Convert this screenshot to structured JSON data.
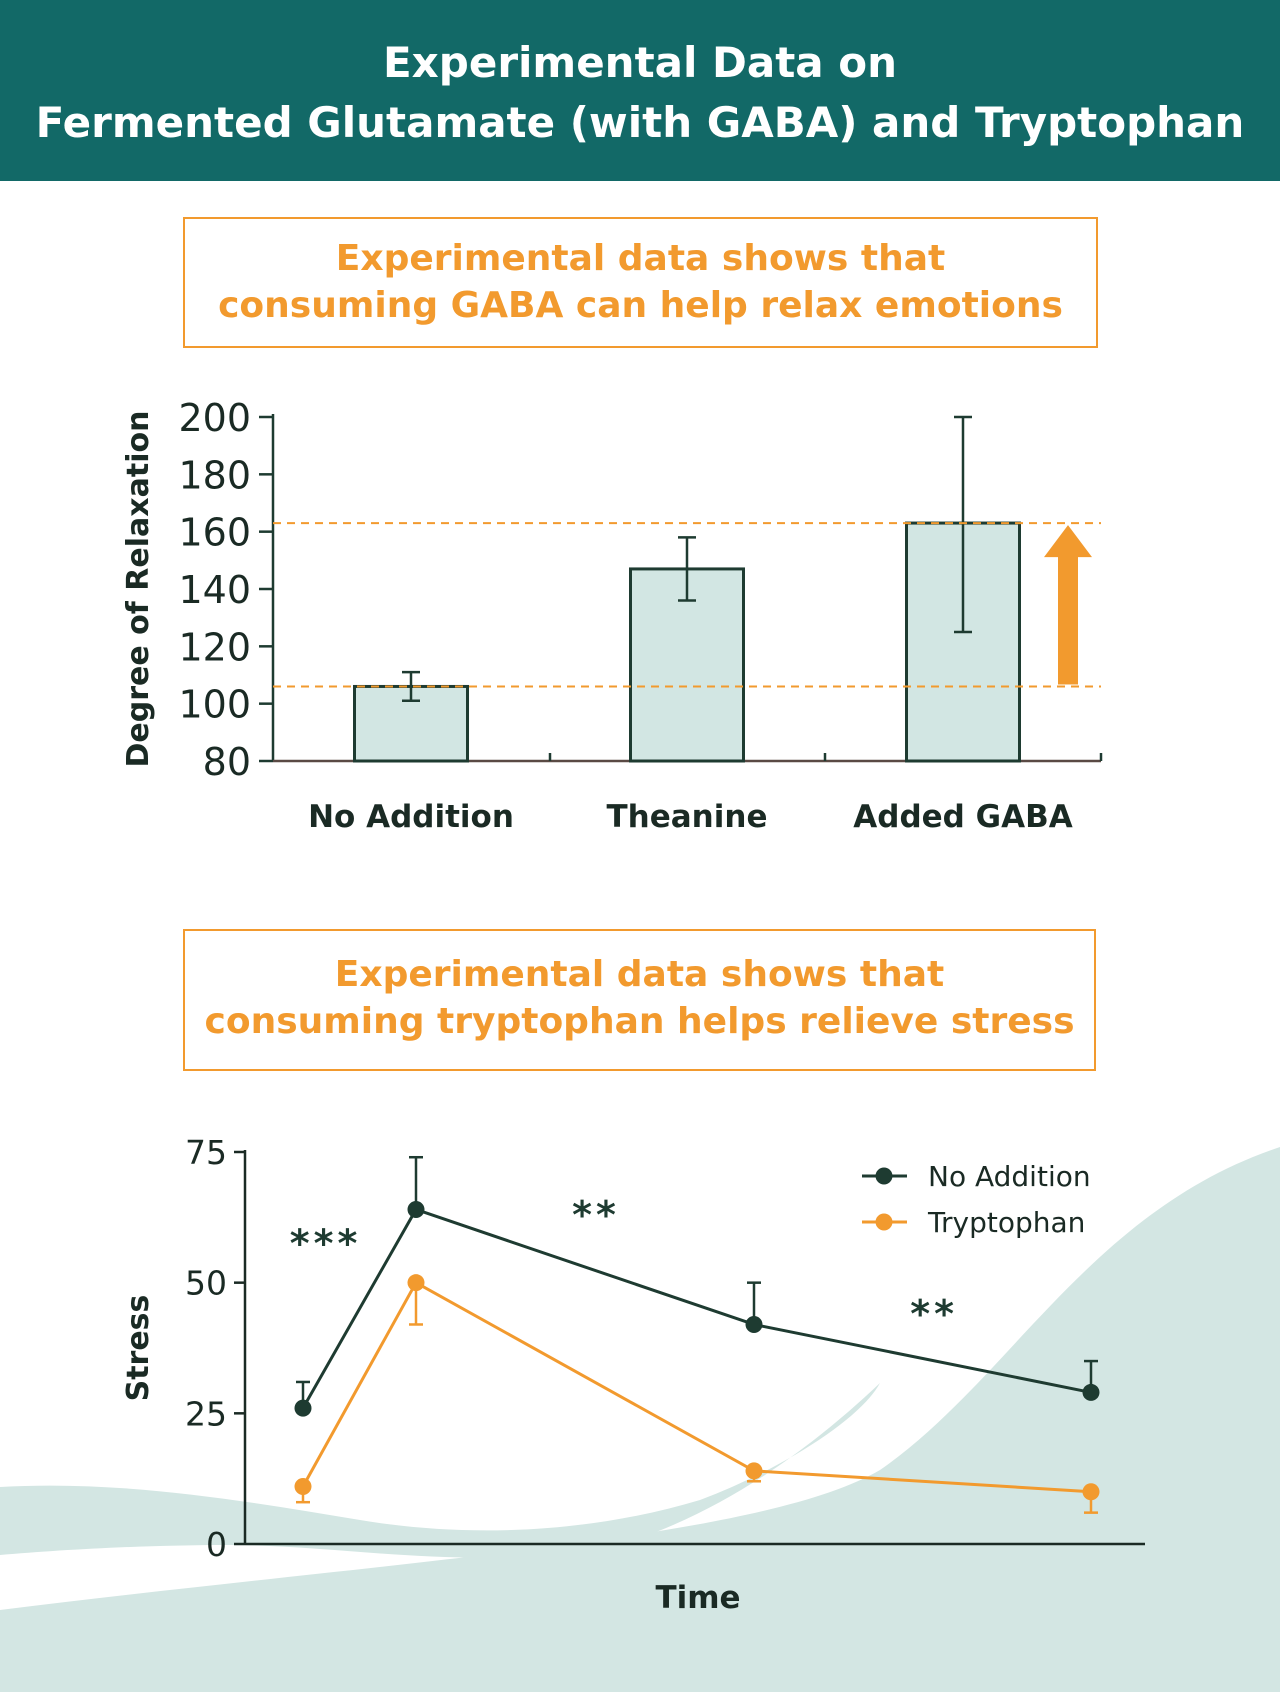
{
  "header": {
    "title_line1": "Experimental Data on",
    "title_line2": "Fermented Glutamate (with GABA) and Tryptophan"
  },
  "callouts": {
    "gaba": {
      "line1": "Experimental data shows that",
      "line2": "consuming GABA can help relax emotions"
    },
    "tryptophan": {
      "line1": "Experimental data shows that",
      "line2": "consuming tryptophan helps relieve stress"
    }
  },
  "colors": {
    "banner": "#126967",
    "accent": "#f29a2e",
    "bar_fill": "#d2e6e3",
    "bar_stroke": "#1e3b31",
    "dark_series": "#1e3b31",
    "wave": "#d3e6e3"
  },
  "chart_data": [
    {
      "type": "bar",
      "categories": [
        "No Addition",
        "Theanine",
        "Added GABA"
      ],
      "values": [
        106,
        147,
        163
      ],
      "error_bars": [
        [
          101,
          111
        ],
        [
          136,
          158
        ],
        [
          125,
          200
        ]
      ],
      "ylabel": "Degree of Relaxation",
      "xlabel": "",
      "ylim": [
        80,
        200
      ],
      "yticks": [
        80,
        100,
        120,
        140,
        160,
        180,
        200
      ],
      "reference_lines": [
        106,
        163
      ],
      "annotation": "up-arrow from 106 to 163",
      "grid": false,
      "legend": "none"
    },
    {
      "type": "line",
      "x": [
        1,
        2,
        5,
        8
      ],
      "series": [
        {
          "name": "No Addition",
          "color": "#1e3b31",
          "values": [
            26,
            64,
            42,
            29
          ],
          "err_high": [
            31,
            74,
            50,
            35
          ],
          "err_low": [
            26,
            64,
            42,
            29
          ]
        },
        {
          "name": "Tryptophan",
          "color": "#f29a2e",
          "values": [
            11,
            50,
            14,
            10
          ],
          "err_high": [
            11,
            50,
            14,
            10
          ],
          "err_low": [
            8,
            42,
            12,
            6
          ]
        }
      ],
      "ylabel": "Stress",
      "xlabel": "Time",
      "ylim": [
        0,
        75
      ],
      "yticks": [
        0,
        25,
        50,
        75
      ],
      "significance": [
        {
          "label": "***",
          "x": 1.2,
          "y": 55
        },
        {
          "label": "**",
          "x": 3.6,
          "y": 60.5
        },
        {
          "label": "**",
          "x": 6.6,
          "y": 41.5
        }
      ],
      "grid": false,
      "legend": "top-right"
    }
  ]
}
